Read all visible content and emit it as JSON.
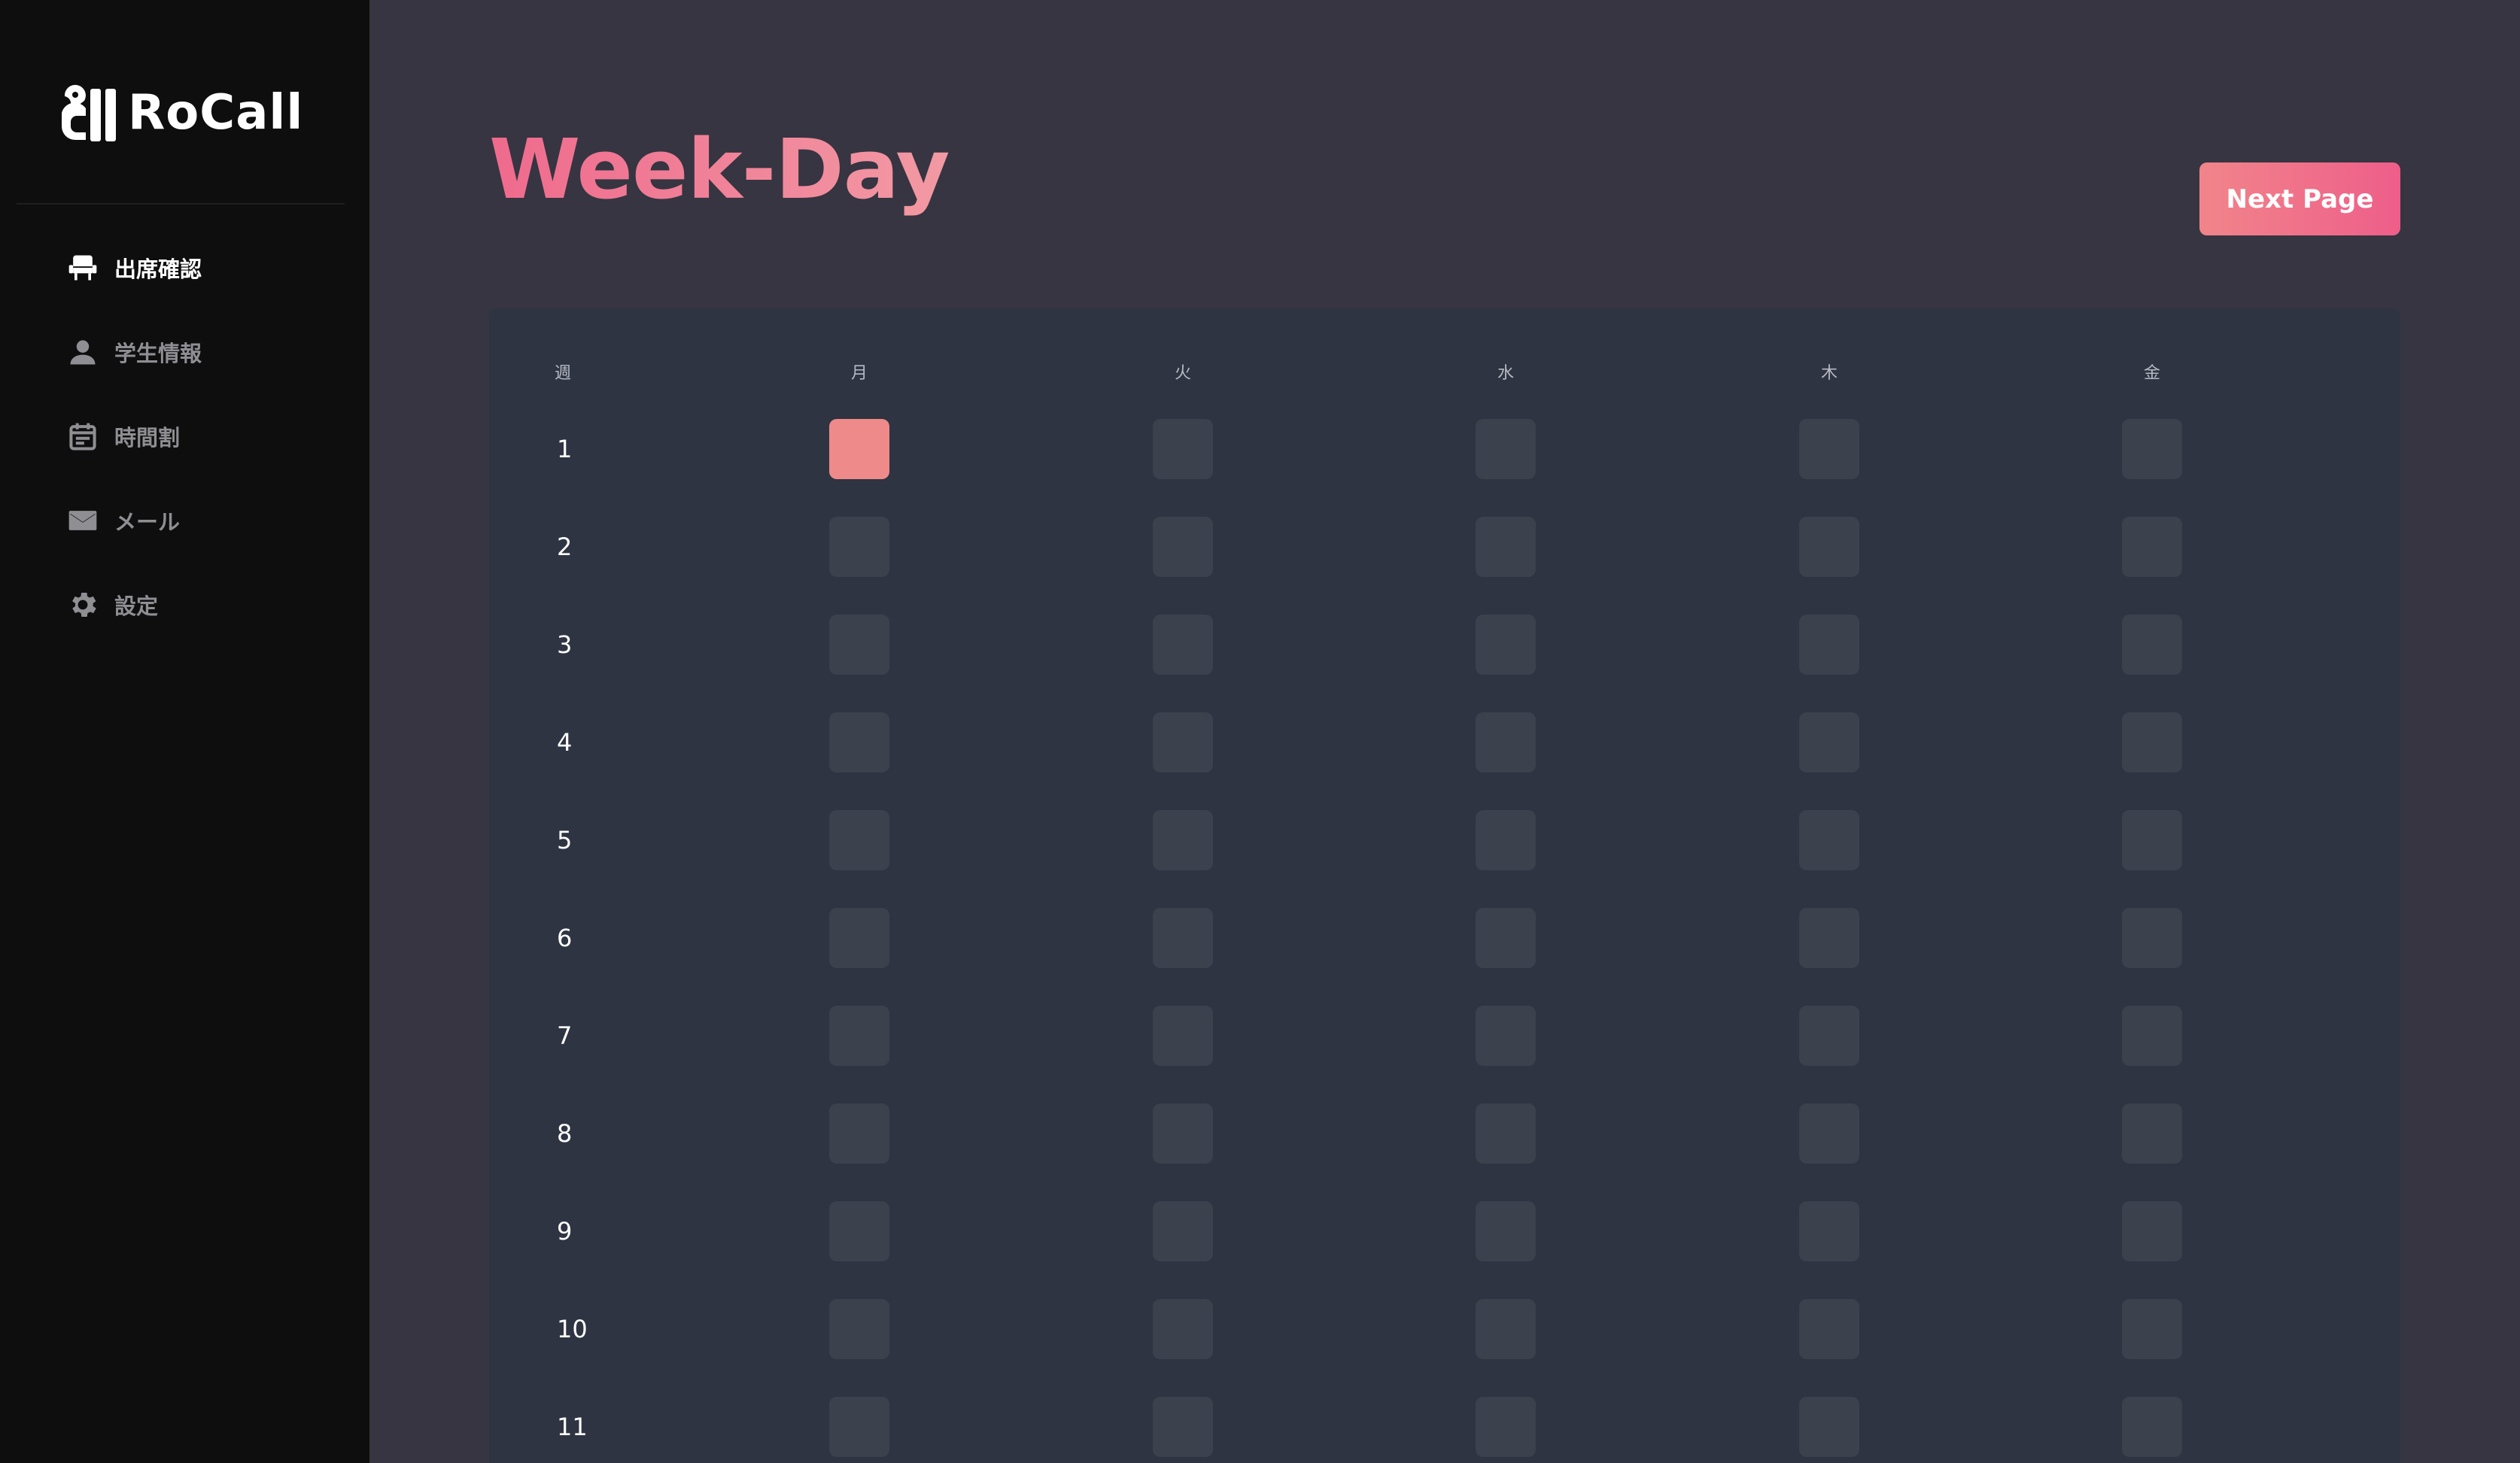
{
  "brand": {
    "name": "RoCall",
    "logo_icon": "rocall-logo-icon"
  },
  "sidebar": {
    "items": [
      {
        "label": "出席確認",
        "icon": "seat-icon",
        "active": true
      },
      {
        "label": "学生情報",
        "icon": "person-icon",
        "active": false
      },
      {
        "label": "時間割",
        "icon": "calendar-icon",
        "active": false
      },
      {
        "label": "メール",
        "icon": "mail-icon",
        "active": false
      },
      {
        "label": "設定",
        "icon": "gear-icon",
        "active": false
      }
    ]
  },
  "header": {
    "title": "Week-Day",
    "next_label": "Next Page"
  },
  "grid": {
    "week_header": "週",
    "days": [
      "月",
      "火",
      "水",
      "木",
      "金"
    ],
    "weeks": [
      "1",
      "2",
      "3",
      "4",
      "5",
      "6",
      "7",
      "8",
      "9",
      "10",
      "11"
    ],
    "selected": [
      {
        "week": "1",
        "day": "月"
      }
    ]
  },
  "colors": {
    "accent": "#ef6a8d",
    "selected_cell": "#ef8a8a",
    "empty_cell": "#3c414e",
    "sidebar_bg": "#0e0e0f",
    "main_bg": "#363541",
    "panel_bg": "#2e3442"
  }
}
